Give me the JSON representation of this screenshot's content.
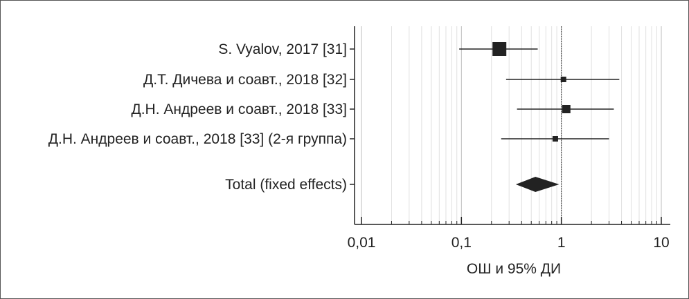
{
  "chart_data": {
    "type": "forest",
    "xlabel": "ОШ и 95% ДИ",
    "xscale": "log",
    "xlim": [
      0.01,
      10
    ],
    "ticks": [
      {
        "value": 0.01,
        "label": "0,01"
      },
      {
        "value": 0.1,
        "label": "0,1"
      },
      {
        "value": 1,
        "label": "1"
      },
      {
        "value": 10,
        "label": "10"
      }
    ],
    "grid": "log-minor-vertical",
    "reference_line": 1,
    "studies": [
      {
        "label": "S. Vyalov, 2017 [31]",
        "or": 0.24,
        "ci": [
          0.095,
          0.58
        ],
        "weight": "large"
      },
      {
        "label": "Д.Т. Дичева и соавт., 2018 [32]",
        "or": 1.05,
        "ci": [
          0.28,
          3.8
        ],
        "weight": "small"
      },
      {
        "label": "Д.Н. Андреев и соавт., 2018 [33]",
        "or": 1.12,
        "ci": [
          0.36,
          3.35
        ],
        "weight": "medium"
      },
      {
        "label": "Д.Н. Андреев и соавт., 2018 [33] (2-я группа)",
        "or": 0.87,
        "ci": [
          0.25,
          3.0
        ],
        "weight": "small"
      }
    ],
    "total": {
      "label": "Total (fixed effects)",
      "or": 0.55,
      "ci": [
        0.35,
        0.95
      ]
    }
  }
}
